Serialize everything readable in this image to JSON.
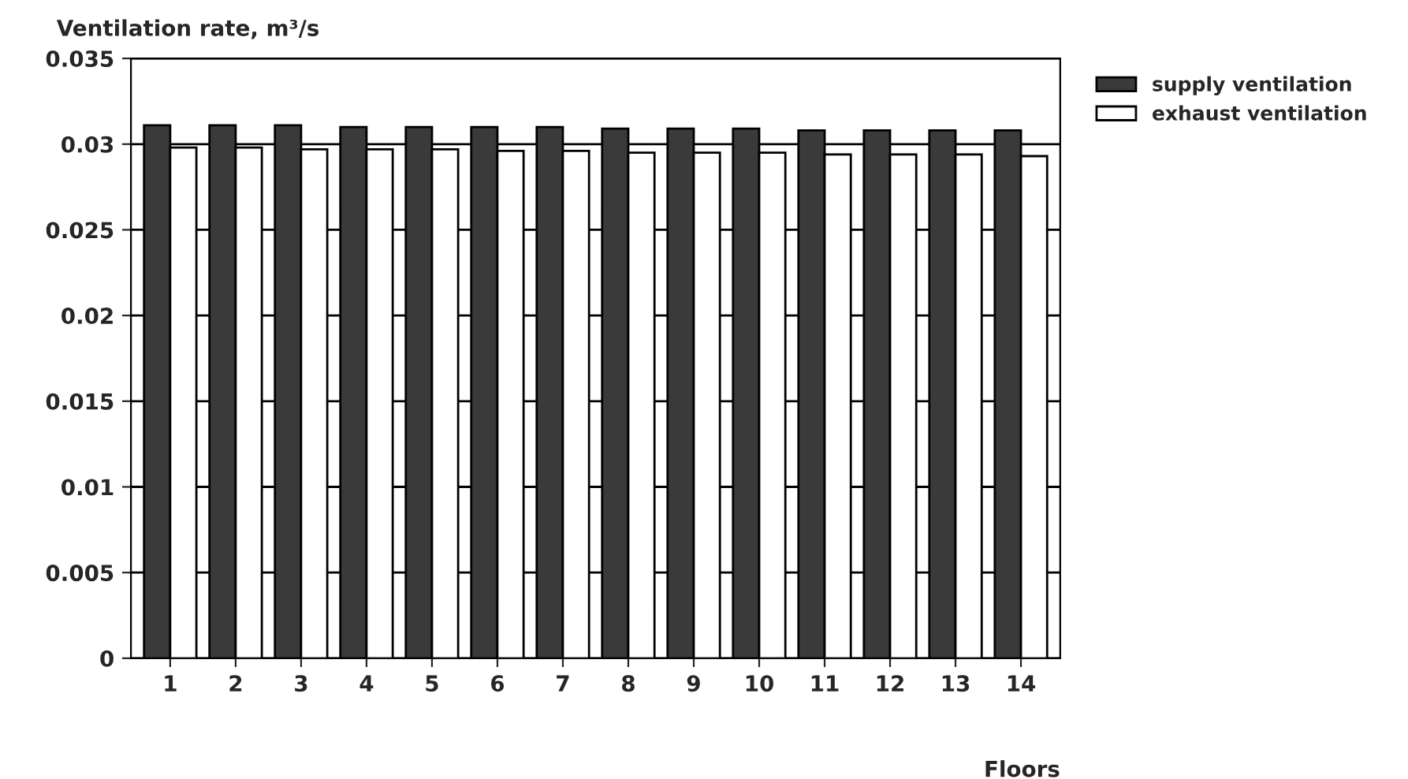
{
  "chart_data": {
    "type": "bar",
    "ylabel": "Ventilation rate, m³/s",
    "xlabel": "Floors",
    "categories": [
      "1",
      "2",
      "3",
      "4",
      "5",
      "6",
      "7",
      "8",
      "9",
      "10",
      "11",
      "12",
      "13",
      "14"
    ],
    "series": [
      {
        "name": "supply ventilation",
        "color": "#3a3a3a",
        "values": [
          0.0311,
          0.0311,
          0.0311,
          0.031,
          0.031,
          0.031,
          0.031,
          0.0309,
          0.0309,
          0.0309,
          0.0308,
          0.0308,
          0.0308,
          0.0308
        ]
      },
      {
        "name": "exhaust ventilation",
        "color": "#ffffff",
        "values": [
          0.0298,
          0.0298,
          0.0297,
          0.0297,
          0.0297,
          0.0296,
          0.0296,
          0.0295,
          0.0295,
          0.0295,
          0.0294,
          0.0294,
          0.0294,
          0.0293
        ]
      }
    ],
    "ylim": [
      0,
      0.035
    ],
    "yticks": [
      0,
      0.005,
      0.01,
      0.015,
      0.02,
      0.025,
      0.03,
      0.035
    ],
    "grid": "y",
    "legend": "top right"
  }
}
